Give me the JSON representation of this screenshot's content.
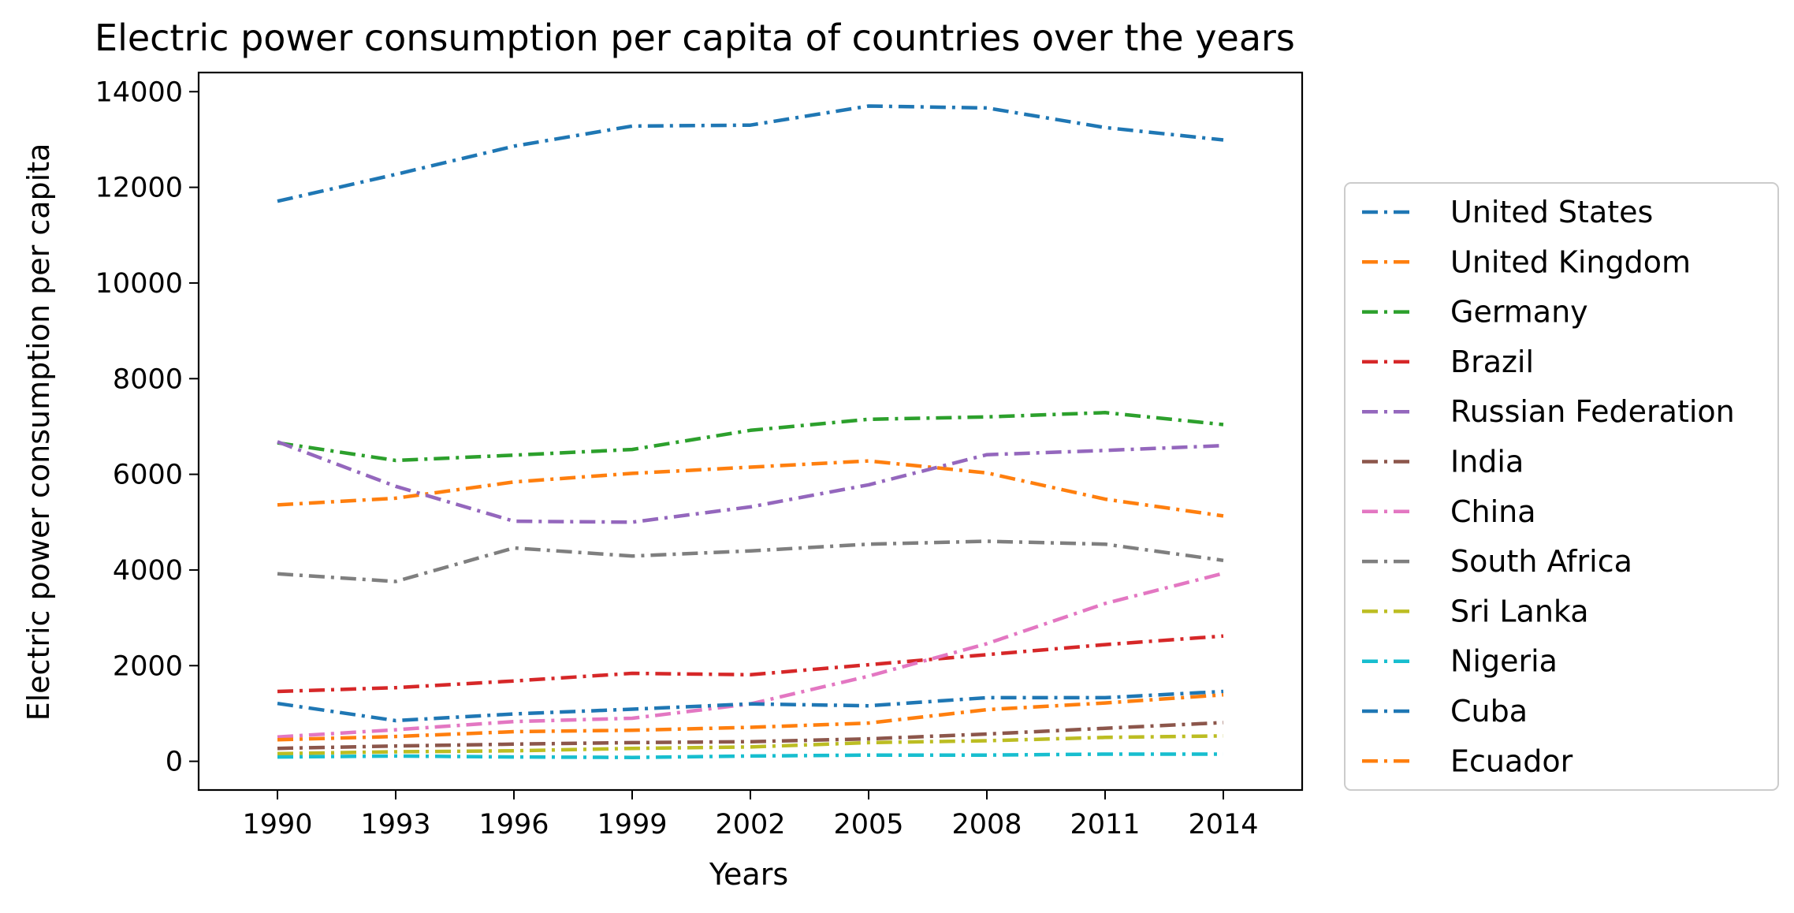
{
  "chart_data": {
    "type": "line",
    "title": "Electric power consumption per capita of countries over the years",
    "xlabel": "Years",
    "ylabel": "Electric power consumption per capita",
    "x": [
      1990,
      1993,
      1996,
      1999,
      2002,
      2005,
      2008,
      2011,
      2014
    ],
    "x_ticks": [
      "1990",
      "1993",
      "1996",
      "1999",
      "2002",
      "2005",
      "2008",
      "2011",
      "2014"
    ],
    "y_ticks": [
      "0",
      "2000",
      "4000",
      "6000",
      "8000",
      "10000",
      "12000",
      "14000"
    ],
    "ylim": [
      -600,
      14400
    ],
    "grid": false,
    "legend_position": "right",
    "series": [
      {
        "name": "United States",
        "color": "#1f77b4",
        "values": [
          11710,
          12270,
          12860,
          13280,
          13300,
          13700,
          13660,
          13250,
          12990
        ]
      },
      {
        "name": "United Kingdom",
        "color": "#ff7f0e",
        "values": [
          5360,
          5500,
          5840,
          6020,
          6150,
          6280,
          6030,
          5480,
          5130
        ]
      },
      {
        "name": "Germany",
        "color": "#2ca02c",
        "values": [
          6660,
          6290,
          6400,
          6520,
          6920,
          7150,
          7200,
          7290,
          7040
        ]
      },
      {
        "name": "Brazil",
        "color": "#d62728",
        "values": [
          1460,
          1540,
          1680,
          1840,
          1810,
          2020,
          2230,
          2440,
          2620
        ]
      },
      {
        "name": "Russian Federation",
        "color": "#9467bd",
        "values": [
          6680,
          5750,
          5020,
          5000,
          5320,
          5780,
          6410,
          6500,
          6600
        ]
      },
      {
        "name": "India",
        "color": "#8c564b",
        "values": [
          270,
          320,
          360,
          390,
          410,
          470,
          570,
          690,
          810
        ]
      },
      {
        "name": "China",
        "color": "#e377c2",
        "values": [
          510,
          660,
          830,
          900,
          1200,
          1780,
          2460,
          3300,
          3930
        ]
      },
      {
        "name": "South Africa",
        "color": "#7f7f7f",
        "values": [
          3920,
          3760,
          4460,
          4290,
          4400,
          4540,
          4600,
          4540,
          4200
        ]
      },
      {
        "name": "Sri Lanka",
        "color": "#bcbd22",
        "values": [
          160,
          200,
          220,
          270,
          300,
          390,
          430,
          500,
          530
        ]
      },
      {
        "name": "Nigeria",
        "color": "#17becf",
        "values": [
          90,
          110,
          90,
          80,
          110,
          130,
          130,
          150,
          150
        ]
      },
      {
        "name": "Cuba",
        "color": "#1f77b4",
        "values": [
          1210,
          850,
          990,
          1090,
          1200,
          1160,
          1330,
          1330,
          1460
        ]
      },
      {
        "name": "Ecuador",
        "color": "#ff7f0e",
        "values": [
          450,
          520,
          620,
          650,
          710,
          800,
          1080,
          1220,
          1390
        ]
      }
    ]
  }
}
